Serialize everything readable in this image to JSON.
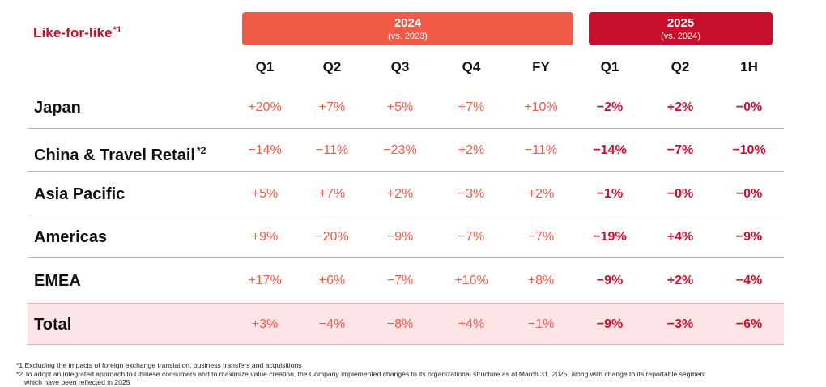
{
  "title": "Like-for-like",
  "title_mark": "*1",
  "years": [
    {
      "year": "2024",
      "vs": "(vs. 2023)",
      "color": "#f05a47"
    },
    {
      "year": "2025",
      "vs": "(vs. 2024)",
      "color": "#c8102e"
    }
  ],
  "columns": [
    "Q1",
    "Q2",
    "Q3",
    "Q4",
    "FY",
    "Q1",
    "Q2",
    "1H"
  ],
  "rows": [
    {
      "label": "Japan",
      "mark": "",
      "values": [
        "+20%",
        "+7%",
        "+5%",
        "+7%",
        "+10%",
        "−2%",
        "+2%",
        "−0%"
      ]
    },
    {
      "label": "China & Travel Retail",
      "mark": "*2",
      "values": [
        "−14%",
        "−11%",
        "−23%",
        "+2%",
        "−11%",
        "−14%",
        "−7%",
        "−10%"
      ]
    },
    {
      "label": "Asia Pacific",
      "mark": "",
      "values": [
        "+5%",
        "+7%",
        "+2%",
        "−3%",
        "+2%",
        "−1%",
        "−0%",
        "−0%"
      ]
    },
    {
      "label": "Americas",
      "mark": "",
      "values": [
        "+9%",
        "−20%",
        "−9%",
        "−7%",
        "−7%",
        "−19%",
        "+4%",
        "−9%"
      ]
    },
    {
      "label": "EMEA",
      "mark": "",
      "values": [
        "+17%",
        "+6%",
        "−7%",
        "+16%",
        "+8%",
        "−9%",
        "+2%",
        "−4%"
      ]
    },
    {
      "label": "Total",
      "mark": "",
      "values": [
        "+3%",
        "−4%",
        "−8%",
        "+4%",
        "−1%",
        "−9%",
        "−3%",
        "−6%"
      ]
    }
  ],
  "footnotes": {
    "fn1": "*1 Excluding the impacts of foreign exchange translation, business transfers and acquisitions",
    "fn2a": "*2 To adopt an integrated approach to Chinese consumers and to maximize value creation, the Company implemented changes to its organizational structure as of March 31, 2025, along with change to its reportable segment",
    "fn2b": "which have been reflected in 2025"
  },
  "colors": {
    "accent_2024": "#ef5a45",
    "accent_2025": "#c8102e",
    "total_row_bg": "#fde5e7"
  }
}
